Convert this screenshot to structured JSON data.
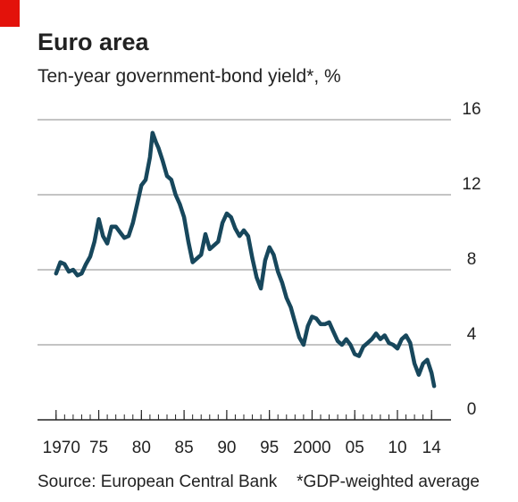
{
  "chart_data": {
    "type": "line",
    "title": "Euro area",
    "subtitle": "Ten-year government-bond yield*, %",
    "source": "Source: European Central Bank",
    "note": "*GDP-weighted average",
    "x": [
      1970,
      1970.5,
      1971,
      1971.5,
      1972,
      1972.5,
      1973,
      1973.5,
      1974,
      1974.5,
      1975,
      1975.5,
      1976,
      1976.5,
      1977,
      1977.5,
      1978,
      1978.5,
      1979,
      1979.5,
      1980,
      1980.5,
      1981,
      1981.3,
      1981.7,
      1982,
      1982.5,
      1983,
      1983.5,
      1984,
      1984.5,
      1985,
      1985.5,
      1986,
      1986.5,
      1987,
      1987.5,
      1988,
      1988.5,
      1989,
      1989.5,
      1990,
      1990.5,
      1991,
      1991.5,
      1992,
      1992.5,
      1993,
      1993.5,
      1994,
      1994.5,
      1995,
      1995.5,
      1996,
      1996.5,
      1997,
      1997.5,
      1998,
      1998.5,
      1999,
      1999.5,
      2000,
      2000.5,
      2001,
      2001.5,
      2002,
      2002.5,
      2003,
      2003.5,
      2004,
      2004.5,
      2005,
      2005.5,
      2006,
      2006.5,
      2007,
      2007.5,
      2008,
      2008.5,
      2009,
      2009.5,
      2010,
      2010.5,
      2011,
      2011.5,
      2012,
      2012.5,
      2013,
      2013.5,
      2014,
      2014.3
    ],
    "series": [
      {
        "name": "Ten-year government-bond yield",
        "color": "#17475c",
        "values": [
          7.8,
          8.4,
          8.3,
          7.9,
          8.0,
          7.7,
          7.8,
          8.3,
          8.7,
          9.5,
          10.7,
          9.8,
          9.4,
          10.3,
          10.3,
          10.0,
          9.7,
          9.8,
          10.5,
          11.5,
          12.5,
          12.8,
          14.0,
          15.3,
          14.8,
          14.5,
          13.8,
          13.0,
          12.8,
          12.0,
          11.5,
          10.8,
          9.5,
          8.4,
          8.6,
          8.8,
          9.9,
          9.1,
          9.3,
          9.5,
          10.5,
          11.0,
          10.8,
          10.2,
          9.8,
          10.1,
          9.8,
          8.6,
          7.6,
          7.0,
          8.5,
          9.2,
          8.8,
          7.9,
          7.3,
          6.5,
          6.0,
          5.2,
          4.4,
          4.0,
          5.0,
          5.5,
          5.4,
          5.1,
          5.1,
          5.2,
          4.7,
          4.2,
          4.0,
          4.3,
          4.0,
          3.5,
          3.4,
          3.9,
          4.1,
          4.3,
          4.6,
          4.3,
          4.5,
          4.1,
          4.0,
          3.8,
          4.3,
          4.5,
          4.1,
          3.0,
          2.4,
          3.0,
          3.2,
          2.5,
          1.8
        ]
      }
    ],
    "xlim": [
      1969.5,
      2014.5
    ],
    "xticks": [
      1970,
      {
        "value": 1975,
        "label": "75"
      },
      {
        "value": 1980,
        "label": "80"
      },
      {
        "value": 1985,
        "label": "85"
      },
      {
        "value": 1990,
        "label": "90"
      },
      {
        "value": 1995,
        "label": "95"
      },
      2000,
      {
        "value": 2005,
        "label": "05"
      },
      {
        "value": 2010,
        "label": "10"
      },
      {
        "value": 2014,
        "label": "14"
      }
    ],
    "xminorticks": [
      1970,
      1971,
      1972,
      1973,
      1974,
      1975,
      1976,
      1977,
      1978,
      1979,
      1980,
      1981,
      1982,
      1983,
      1984,
      1985,
      1986,
      1987,
      1988,
      1989,
      1990,
      1991,
      1992,
      1993,
      1994,
      1995,
      1996,
      1997,
      1998,
      1999,
      2000,
      2001,
      2002,
      2003,
      2004,
      2005,
      2006,
      2007,
      2008,
      2009,
      2010,
      2011,
      2012,
      2013,
      2014
    ],
    "ylim": [
      0,
      16
    ],
    "yticks": [
      0,
      4,
      8,
      12,
      16
    ],
    "grid": true
  }
}
